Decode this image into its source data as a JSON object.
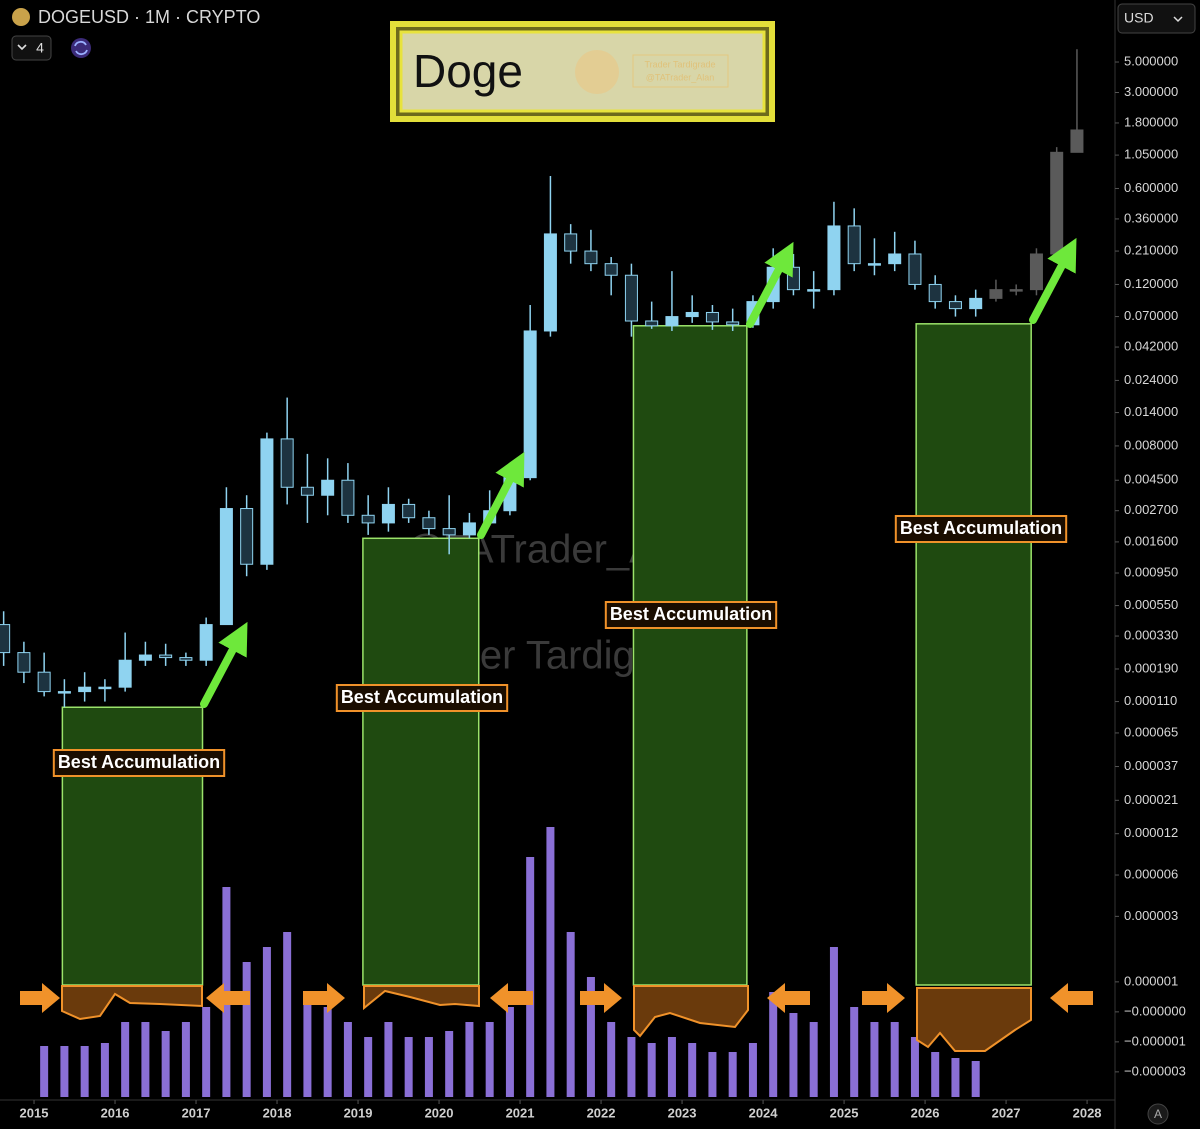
{
  "chart_data": {
    "type": "candlestick",
    "title": "DOGEUSD · 1M · CRYPTO",
    "indicator_count": 4,
    "currency": "USD",
    "scale_mode": "A",
    "logo_text": "Doge",
    "logo_watermarks": [
      "Trader Tardigrade",
      "@TATrader_Alan"
    ],
    "watermarks": [
      "@TATrader_Alan",
      "Trader Tardigrade"
    ],
    "log_scale": true,
    "up_color": "#8fd3f0",
    "down_color": "#1d3340",
    "volume_color": "#8a6fd6",
    "zone_color": "#1f4a10",
    "xlim": [
      2014.58,
      2028.32
    ],
    "xticks": [
      2015,
      2016,
      2017,
      2018,
      2019,
      2020,
      2021,
      2022,
      2023,
      2024,
      2025,
      2026,
      2027,
      2028
    ],
    "ylim": [
      1.5e-07,
      8
    ],
    "yticks": [
      {
        "value": 5,
        "label": "5.000000"
      },
      {
        "value": 3,
        "label": "3.000000"
      },
      {
        "value": 1.8,
        "label": "1.800000"
      },
      {
        "value": 1.05,
        "label": "1.050000"
      },
      {
        "value": 0.6,
        "label": "0.600000"
      },
      {
        "value": 0.36,
        "label": "0.360000"
      },
      {
        "value": 0.21,
        "label": "0.210000"
      },
      {
        "value": 0.12,
        "label": "0.120000"
      },
      {
        "value": 0.07,
        "label": "0.070000"
      },
      {
        "value": 0.042,
        "label": "0.042000"
      },
      {
        "value": 0.024,
        "label": "0.024000"
      },
      {
        "value": 0.014,
        "label": "0.014000"
      },
      {
        "value": 0.008,
        "label": "0.008000"
      },
      {
        "value": 0.0045,
        "label": "0.004500"
      },
      {
        "value": 0.0027,
        "label": "0.002700"
      },
      {
        "value": 0.0016,
        "label": "0.001600"
      },
      {
        "value": 0.00095,
        "label": "0.000950"
      },
      {
        "value": 0.00055,
        "label": "0.000550"
      },
      {
        "value": 0.00033,
        "label": "0.000330"
      },
      {
        "value": 0.00019,
        "label": "0.000190"
      },
      {
        "value": 0.00011,
        "label": "0.000110"
      },
      {
        "value": 6.5e-05,
        "label": "0.000065"
      },
      {
        "value": 3.7e-05,
        "label": "0.000037"
      },
      {
        "value": 2.1e-05,
        "label": "0.000021"
      },
      {
        "value": 1.2e-05,
        "label": "0.000012"
      },
      {
        "value": 6e-06,
        "label": "0.000006"
      },
      {
        "value": 3e-06,
        "label": "0.000003"
      },
      {
        "value": 1e-06,
        "label": "0.000001"
      },
      {
        "value": 0,
        "label": "−0.000000"
      },
      {
        "value": -1e-06,
        "label": "−0.000001"
      },
      {
        "value": -3e-06,
        "label": "−0.000003"
      }
    ],
    "x": [
      2014.625,
      2014.875,
      2015.125,
      2015.375,
      2015.625,
      2015.875,
      2016.125,
      2016.375,
      2016.625,
      2016.875,
      2017.125,
      2017.375,
      2017.625,
      2017.875,
      2018.125,
      2018.375,
      2018.625,
      2018.875,
      2019.125,
      2019.375,
      2019.625,
      2019.875,
      2020.125,
      2020.375,
      2020.625,
      2020.875,
      2021.125,
      2021.375,
      2021.625,
      2021.875,
      2022.125,
      2022.375,
      2022.625,
      2022.875,
      2023.125,
      2023.375,
      2023.625,
      2023.875,
      2024.125,
      2024.375,
      2024.625,
      2024.875,
      2025.125,
      2025.375,
      2025.625,
      2025.875,
      2026.125,
      2026.375,
      2026.625
    ],
    "open": [
      0.0004,
      0.00025,
      0.00018,
      0.00013,
      0.00013,
      0.00014,
      0.00014,
      0.00022,
      0.00024,
      0.00023,
      0.00022,
      0.0004,
      0.0028,
      0.0011,
      0.009,
      0.004,
      0.0035,
      0.0045,
      0.0025,
      0.0022,
      0.003,
      0.0024,
      0.002,
      0.0018,
      0.0022,
      0.0027,
      0.0047,
      0.055,
      0.28,
      0.21,
      0.17,
      0.14,
      0.065,
      0.06,
      0.07,
      0.075,
      0.064,
      0.061,
      0.09,
      0.16,
      0.11,
      0.11,
      0.32,
      0.17,
      0.17,
      0.2,
      0.12,
      0.09,
      0.08
    ],
    "high": [
      0.0005,
      0.0003,
      0.00025,
      0.00016,
      0.00018,
      0.00016,
      0.00035,
      0.0003,
      0.00029,
      0.00025,
      0.00045,
      0.004,
      0.0035,
      0.01,
      0.018,
      0.007,
      0.0065,
      0.006,
      0.0035,
      0.004,
      0.0033,
      0.0027,
      0.0035,
      0.0026,
      0.0038,
      0.0055,
      0.085,
      0.74,
      0.33,
      0.3,
      0.19,
      0.17,
      0.09,
      0.15,
      0.1,
      0.085,
      0.08,
      0.1,
      0.22,
      0.2,
      0.15,
      0.48,
      0.43,
      0.26,
      0.29,
      0.25,
      0.14,
      0.1,
      0.11
    ],
    "low": [
      0.0002,
      0.00015,
      0.00012,
      0.0001,
      0.00011,
      0.00011,
      0.00013,
      0.0002,
      0.0002,
      0.0002,
      0.0002,
      0.0004,
      0.0009,
      0.001,
      0.003,
      0.0022,
      0.0025,
      0.0022,
      0.0018,
      0.0019,
      0.0022,
      0.0018,
      0.0013,
      0.0017,
      0.0021,
      0.0025,
      0.0045,
      0.05,
      0.17,
      0.15,
      0.1,
      0.05,
      0.057,
      0.055,
      0.063,
      0.056,
      0.055,
      0.058,
      0.08,
      0.1,
      0.08,
      0.1,
      0.15,
      0.14,
      0.15,
      0.11,
      0.08,
      0.07,
      0.07
    ],
    "close": [
      0.00025,
      0.00018,
      0.00013,
      0.00013,
      0.00014,
      0.00014,
      0.00022,
      0.00024,
      0.00023,
      0.00022,
      0.0004,
      0.0028,
      0.0011,
      0.009,
      0.004,
      0.0035,
      0.0045,
      0.0025,
      0.0022,
      0.003,
      0.0024,
      0.002,
      0.0018,
      0.0022,
      0.0027,
      0.0047,
      0.055,
      0.28,
      0.21,
      0.17,
      0.14,
      0.065,
      0.06,
      0.07,
      0.075,
      0.064,
      0.061,
      0.09,
      0.16,
      0.11,
      0.11,
      0.32,
      0.17,
      0.17,
      0.2,
      0.12,
      0.09,
      0.08,
      0.095
    ],
    "volume": [
      null,
      null,
      17,
      17,
      17,
      18,
      25,
      25,
      22,
      25,
      30,
      70,
      45,
      50,
      55,
      35,
      30,
      25,
      20,
      25,
      20,
      20,
      22,
      25,
      25,
      30,
      80,
      90,
      55,
      40,
      25,
      20,
      18,
      20,
      18,
      15,
      15,
      18,
      35,
      28,
      25,
      50,
      30,
      25,
      25,
      20,
      15,
      13,
      12
    ],
    "vlim": [
      0,
      100
    ],
    "projection": {
      "color": "#5a5a5a",
      "x": [
        2026.875,
        2027.125,
        2027.375,
        2027.625,
        2027.875
      ],
      "open": [
        0.095,
        0.11,
        0.11,
        0.2,
        1.1
      ],
      "high": [
        0.13,
        0.12,
        0.22,
        1.2,
        6.2
      ],
      "low": [
        0.09,
        0.1,
        0.1,
        0.2,
        1.1
      ],
      "close": [
        0.11,
        0.11,
        0.2,
        1.1,
        1.6
      ]
    },
    "zones": [
      {
        "x": [
          2015.35,
          2017.08
        ],
        "top": 0.0001,
        "label": "Best Accumulation"
      },
      {
        "x": [
          2019.06,
          2020.49
        ],
        "top": 0.0017,
        "label": "Best Accumulation"
      },
      {
        "x": [
          2022.4,
          2023.8
        ],
        "top": 0.06,
        "label": "Best Accumulation"
      },
      {
        "x": [
          2025.89,
          2027.31
        ],
        "top": 0.062,
        "label": "Best Accumulation"
      }
    ]
  }
}
